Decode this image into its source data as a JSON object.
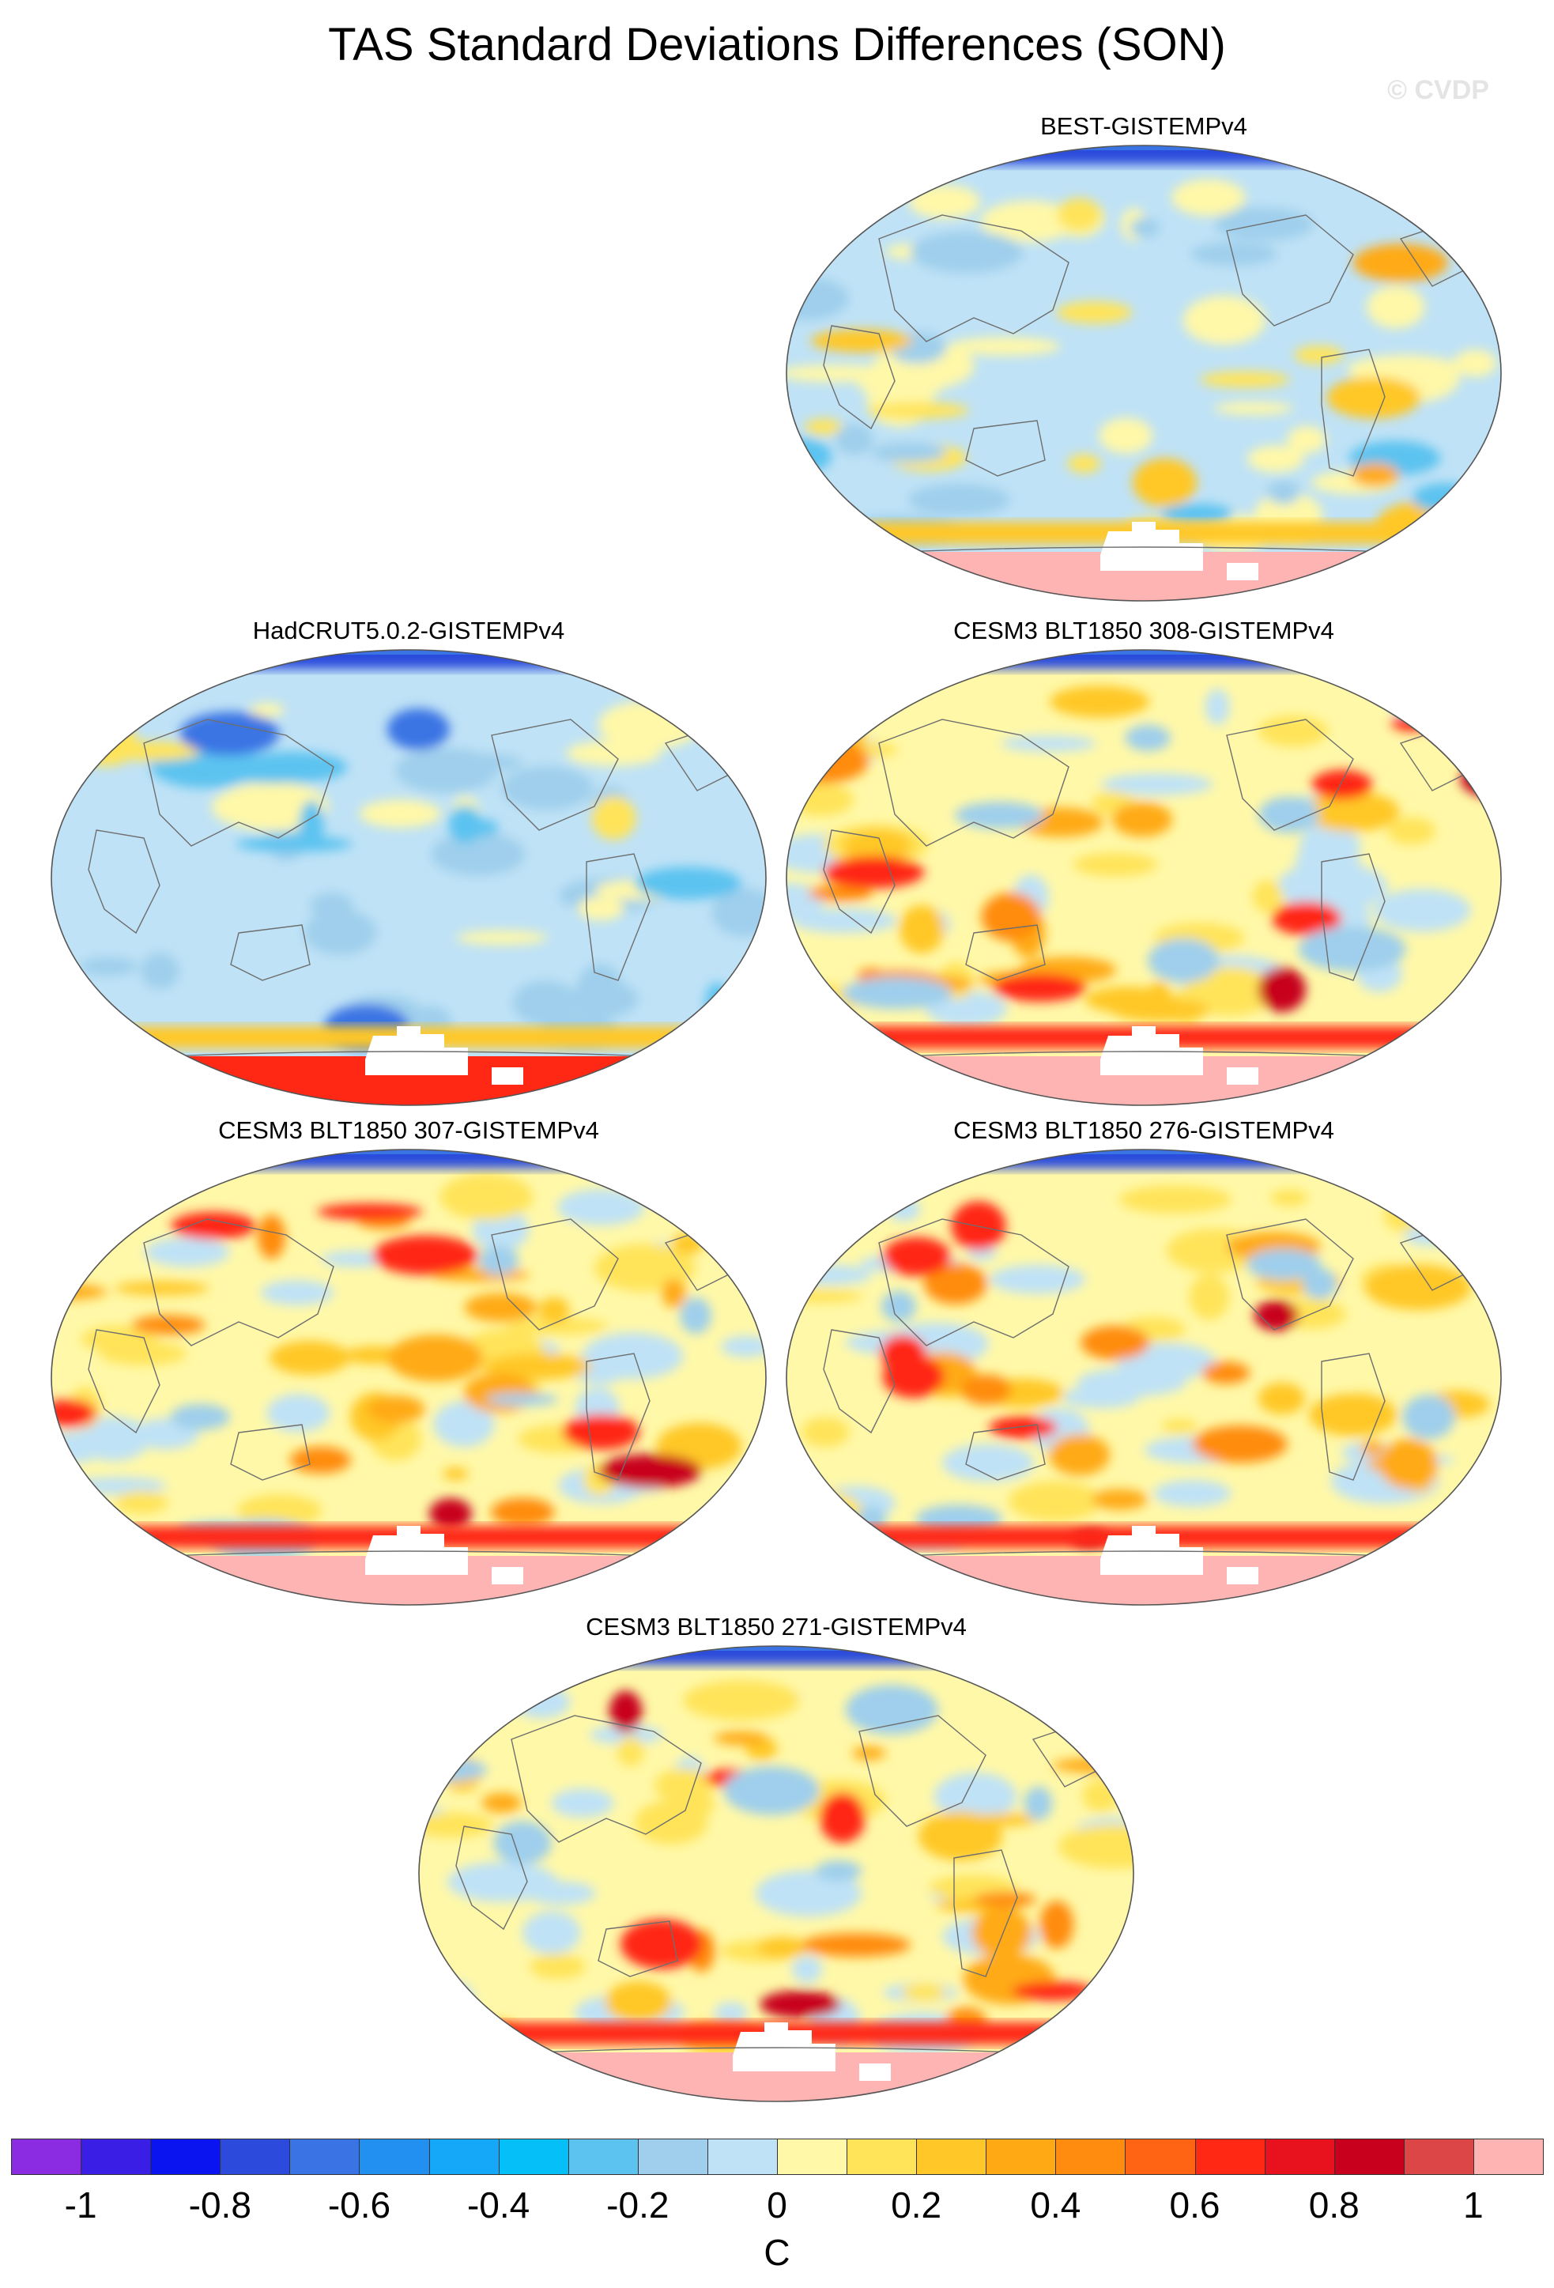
{
  "figure": {
    "title": "TAS Standard Deviations Differences (SON)",
    "watermark": "© CVDP",
    "units": "C"
  },
  "panels": [
    {
      "label": "BEST-GISTEMPv4",
      "pattern": "weak",
      "arctic_anomaly": "blue",
      "antarctic_anomaly": "pink"
    },
    {
      "label": "HadCRUT5.0.2-GISTEMPv4",
      "pattern": "negative",
      "arctic_anomaly": "blue",
      "antarctic_anomaly": "red"
    },
    {
      "label": "CESM3 BLT1850 308-GISTEMPv4",
      "pattern": "strong",
      "arctic_anomaly": "blue",
      "antarctic_anomaly": "pink"
    },
    {
      "label": "CESM3 BLT1850 307-GISTEMPv4",
      "pattern": "strong",
      "arctic_anomaly": "blue",
      "antarctic_anomaly": "pink"
    },
    {
      "label": "CESM3 BLT1850 276-GISTEMPv4",
      "pattern": "strong",
      "arctic_anomaly": "blue",
      "antarctic_anomaly": "pink"
    },
    {
      "label": "CESM3 BLT1850 271-GISTEMPv4",
      "pattern": "strong",
      "arctic_anomaly": "blue",
      "antarctic_anomaly": "pink"
    }
  ],
  "colorbar": {
    "colors": [
      "#8b2be2",
      "#3a1ee6",
      "#0a14f0",
      "#2c4bdc",
      "#3a74e4",
      "#2190f0",
      "#16a8f8",
      "#05bff8",
      "#5cc3f0",
      "#9fcfec",
      "#bfe2f6",
      "#fff8a8",
      "#ffe45a",
      "#ffc828",
      "#ffaa14",
      "#ff8c0f",
      "#ff6414",
      "#ff2814",
      "#e8121e",
      "#c8001e",
      "#dc4646",
      "#ffb4b4"
    ],
    "levels": [
      -1.0,
      -0.9,
      -0.8,
      -0.7,
      -0.6,
      -0.5,
      -0.4,
      -0.3,
      -0.2,
      -0.1,
      0,
      0.1,
      0.2,
      0.3,
      0.4,
      0.5,
      0.6,
      0.7,
      0.8,
      0.9,
      1.0
    ],
    "tick_labels": [
      "-1",
      "-0.8",
      "-0.6",
      "-0.4",
      "-0.2",
      "0",
      "0.2",
      "0.4",
      "0.6",
      "0.8",
      "1"
    ]
  }
}
